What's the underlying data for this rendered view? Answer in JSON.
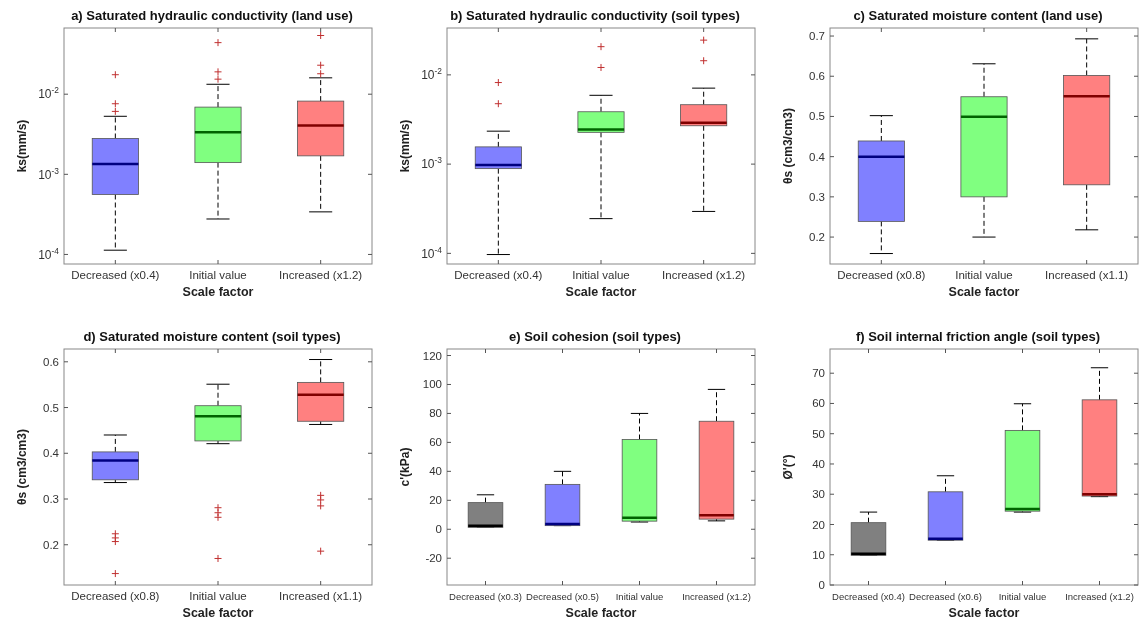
{
  "chart_data": [
    {
      "type": "box",
      "title": "a) Saturated hydraulic conductivity (land use)",
      "xlabel": "Scale factor",
      "ylabel": "ks(mm/s)",
      "log": "y",
      "categories": [
        "Decreased (x0.4)",
        "Initial value",
        "Increased (x1.2)"
      ],
      "colors": [
        "#8080ff",
        "#80ff80",
        "#ff8080"
      ],
      "ylim": [
        7.6e-05,
        0.067
      ],
      "yticks": [
        {
          "value": 0.0001,
          "label": "10$^{-4}$"
        },
        {
          "value": 0.001,
          "label": "10$^{-3}$"
        },
        {
          "value": 0.01,
          "label": "10$^{-2}$"
        }
      ],
      "boxes": [
        {
          "low": 0.000113,
          "q1": 0.00056,
          "median": 0.00135,
          "q3": 0.0028,
          "high": 0.0053,
          "outliers": [
            0.0175,
            0.0076,
            0.0061
          ]
        },
        {
          "low": 0.000277,
          "q1": 0.0014,
          "median": 0.00335,
          "q3": 0.0069,
          "high": 0.0133,
          "outliers": [
            0.044,
            0.019,
            0.0154
          ]
        },
        {
          "low": 0.00034,
          "q1": 0.0017,
          "median": 0.00407,
          "q3": 0.0082,
          "high": 0.016,
          "outliers": [
            0.054,
            0.023,
            0.018
          ]
        }
      ]
    },
    {
      "type": "box",
      "title": "b) Saturated hydraulic conductivity (soil types)",
      "xlabel": "Scale factor",
      "ylabel": "ks(mm/s)",
      "log": "y",
      "categories": [
        "Decreased (x0.4)",
        "Initial value",
        "Increased (x1.2)"
      ],
      "colors": [
        "#8080ff",
        "#80ff80",
        "#ff8080"
      ],
      "ylim": [
        7.6e-05,
        0.0335
      ],
      "yticks": [
        {
          "value": 0.0001,
          "label": "10$^{-4}$"
        },
        {
          "value": 0.001,
          "label": "10$^{-3}$"
        },
        {
          "value": 0.01,
          "label": "10$^{-2}$"
        }
      ],
      "boxes": [
        {
          "low": 9.7e-05,
          "q1": 0.00089,
          "median": 0.00098,
          "q3": 0.00156,
          "high": 0.00234,
          "outliers": [
            0.0082,
            0.00475
          ]
        },
        {
          "low": 0.000245,
          "q1": 0.00227,
          "median": 0.00245,
          "q3": 0.00386,
          "high": 0.0059,
          "outliers": [
            0.0207,
            0.0121
          ]
        },
        {
          "low": 0.000295,
          "q1": 0.00269,
          "median": 0.0029,
          "q3": 0.00463,
          "high": 0.0071,
          "outliers": [
            0.0245,
            0.0144
          ]
        }
      ]
    },
    {
      "type": "box",
      "title": "c) Saturated moisture content (land use)",
      "xlabel": "Scale factor",
      "ylabel": "θs (cm3/cm3)",
      "categories": [
        "Decreased (x0.8)",
        "Initial value",
        "Increased (x1.1)"
      ],
      "colors": [
        "#8080ff",
        "#80ff80",
        "#ff8080"
      ],
      "ylim": [
        0.133,
        0.72
      ],
      "yticks": [
        0.2,
        0.3,
        0.4,
        0.5,
        0.6,
        0.7
      ],
      "boxes": [
        {
          "low": 0.159,
          "q1": 0.239,
          "median": 0.4,
          "q3": 0.439,
          "high": 0.502
        },
        {
          "low": 0.2,
          "q1": 0.3,
          "median": 0.499,
          "q3": 0.549,
          "high": 0.631
        },
        {
          "low": 0.218,
          "q1": 0.33,
          "median": 0.55,
          "q3": 0.602,
          "high": 0.693
        }
      ]
    },
    {
      "type": "box",
      "title": "d) Saturated moisture content (soil types)",
      "xlabel": "Scale factor",
      "ylabel": "θs (cm3/cm3)",
      "categories": [
        "Decreased (x0.8)",
        "Initial value",
        "Increased (x1.1)"
      ],
      "colors": [
        "#8080ff",
        "#80ff80",
        "#ff8080"
      ],
      "ylim": [
        0.112,
        0.628
      ],
      "yticks": [
        0.2,
        0.3,
        0.4,
        0.5,
        0.6
      ],
      "boxes": [
        {
          "low": 0.336,
          "q1": 0.342,
          "median": 0.384,
          "q3": 0.403,
          "high": 0.44,
          "outliers": [
            0.224,
            0.215,
            0.207,
            0.137
          ]
        },
        {
          "low": 0.421,
          "q1": 0.427,
          "median": 0.481,
          "q3": 0.504,
          "high": 0.551,
          "outliers": [
            0.281,
            0.27,
            0.26,
            0.17
          ]
        },
        {
          "low": 0.463,
          "q1": 0.47,
          "median": 0.528,
          "q3": 0.555,
          "high": 0.605,
          "outliers": [
            0.308,
            0.298,
            0.285,
            0.186
          ]
        }
      ]
    },
    {
      "type": "box",
      "title": "e) Soil cohesion (soil types)",
      "xlabel": "Scale factor",
      "ylabel": "c'(kPa)",
      "categories": [
        "Decreased (x0.3)",
        "Decreased (x0.5)",
        "Initial value",
        "Increased (x1.2)"
      ],
      "colors": [
        "#808080",
        "#8080ff",
        "#80ff80",
        "#ff8080"
      ],
      "ylim": [
        -38.5,
        124.5
      ],
      "yticks": [
        -20,
        0,
        20,
        40,
        60,
        80,
        100,
        120
      ],
      "boxes": [
        {
          "low": 1.3,
          "q1": 1.3,
          "median": 2.5,
          "q3": 18.4,
          "high": 23.8
        },
        {
          "low": 2.5,
          "q1": 2.5,
          "median": 3.6,
          "q3": 31,
          "high": 40
        },
        {
          "low": 5,
          "q1": 5.6,
          "median": 8,
          "q3": 62,
          "high": 80
        },
        {
          "low": 5.8,
          "q1": 7,
          "median": 9.7,
          "q3": 74.6,
          "high": 96.6
        }
      ]
    },
    {
      "type": "box",
      "title": "f) Soil internal friction angle (soil types)",
      "xlabel": "Scale factor",
      "ylabel": "Ø'(°)",
      "categories": [
        "Decreased (x0.4)",
        "Decreased (x0.6)",
        "Initial value",
        "Increased (x1.2)"
      ],
      "colors": [
        "#808080",
        "#8080ff",
        "#80ff80",
        "#ff8080"
      ],
      "ylim": [
        0,
        78
      ],
      "yticks": [
        0,
        10,
        20,
        30,
        40,
        50,
        60,
        70
      ],
      "boxes": [
        {
          "low": 9.8,
          "q1": 9.8,
          "median": 10.3,
          "q3": 20.6,
          "high": 24.1
        },
        {
          "low": 14.8,
          "q1": 14.8,
          "median": 15.3,
          "q3": 30.8,
          "high": 36.1
        },
        {
          "low": 24.1,
          "q1": 24.4,
          "median": 25.1,
          "q3": 51.1,
          "high": 59.9
        },
        {
          "low": 29.2,
          "q1": 29.4,
          "median": 30,
          "q3": 61.2,
          "high": 71.8
        }
      ]
    }
  ]
}
